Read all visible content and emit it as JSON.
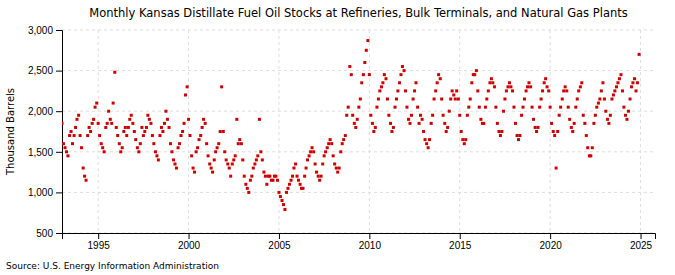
{
  "chart_data": {
    "type": "scatter",
    "title": "Monthly Kansas Distillate Fuel Oil Stocks at Refineries, Bulk Terminals, and Natural Gas Plants",
    "ylabel": "Thousand Barrels",
    "source": "Source: U.S. Energy Information Administration",
    "color": "#cc0000",
    "marker": "square",
    "grid": true,
    "xlim": [
      1993.0,
      2025.8
    ],
    "xticks": [
      1995,
      2000,
      2005,
      2010,
      2015,
      2020,
      2025
    ],
    "ylim": [
      500,
      3000
    ],
    "yticks": [
      500,
      {
        "value": 1000,
        "label": "1,000"
      },
      {
        "value": 1500,
        "label": "1,500"
      },
      {
        "value": 2000,
        "label": "2,000"
      },
      {
        "value": 2500,
        "label": "2,500"
      },
      {
        "value": 3000,
        "label": "3,000"
      }
    ],
    "x": [
      1993.0,
      1993.08,
      1993.17,
      1993.25,
      1993.33,
      1993.42,
      1993.5,
      1993.58,
      1993.67,
      1993.75,
      1993.83,
      1993.92,
      1994.0,
      1994.08,
      1994.17,
      1994.25,
      1994.33,
      1994.42,
      1994.5,
      1994.58,
      1994.67,
      1994.75,
      1994.83,
      1994.92,
      1995.0,
      1995.08,
      1995.17,
      1995.25,
      1995.33,
      1995.42,
      1995.5,
      1995.58,
      1995.67,
      1995.75,
      1995.83,
      1995.92,
      1996.0,
      1996.08,
      1996.17,
      1996.25,
      1996.33,
      1996.42,
      1996.5,
      1996.58,
      1996.67,
      1996.75,
      1996.83,
      1996.92,
      1997.0,
      1997.08,
      1997.17,
      1997.25,
      1997.33,
      1997.42,
      1997.5,
      1997.58,
      1997.67,
      1997.75,
      1997.83,
      1997.92,
      1998.0,
      1998.08,
      1998.17,
      1998.25,
      1998.33,
      1998.42,
      1998.5,
      1998.58,
      1998.67,
      1998.75,
      1998.83,
      1998.92,
      1999.0,
      1999.08,
      1999.17,
      1999.25,
      1999.33,
      1999.42,
      1999.5,
      1999.58,
      1999.67,
      1999.75,
      1999.83,
      1999.92,
      2000.0,
      2000.08,
      2000.17,
      2000.25,
      2000.33,
      2000.42,
      2000.5,
      2000.58,
      2000.67,
      2000.75,
      2000.83,
      2000.92,
      2001.0,
      2001.08,
      2001.17,
      2001.25,
      2001.33,
      2001.42,
      2001.5,
      2001.58,
      2001.67,
      2001.75,
      2001.83,
      2001.92,
      2002.0,
      2002.08,
      2002.17,
      2002.25,
      2002.33,
      2002.42,
      2002.5,
      2002.58,
      2002.67,
      2002.75,
      2002.83,
      2002.92,
      2003.0,
      2003.08,
      2003.17,
      2003.25,
      2003.33,
      2003.42,
      2003.5,
      2003.58,
      2003.67,
      2003.75,
      2003.83,
      2003.92,
      2004.0,
      2004.08,
      2004.17,
      2004.25,
      2004.33,
      2004.42,
      2004.5,
      2004.58,
      2004.67,
      2004.75,
      2004.83,
      2004.92,
      2005.0,
      2005.08,
      2005.17,
      2005.25,
      2005.33,
      2005.42,
      2005.5,
      2005.58,
      2005.67,
      2005.75,
      2005.83,
      2005.92,
      2006.0,
      2006.08,
      2006.17,
      2006.25,
      2006.33,
      2006.42,
      2006.5,
      2006.58,
      2006.67,
      2006.75,
      2006.83,
      2006.92,
      2007.0,
      2007.08,
      2007.17,
      2007.25,
      2007.33,
      2007.42,
      2007.5,
      2007.58,
      2007.67,
      2007.75,
      2007.83,
      2007.92,
      2008.0,
      2008.08,
      2008.17,
      2008.25,
      2008.33,
      2008.42,
      2008.5,
      2008.58,
      2008.67,
      2008.75,
      2008.83,
      2008.92,
      2009.0,
      2009.08,
      2009.17,
      2009.25,
      2009.33,
      2009.42,
      2009.5,
      2009.58,
      2009.67,
      2009.75,
      2009.83,
      2009.92,
      2010.0,
      2010.08,
      2010.17,
      2010.25,
      2010.33,
      2010.42,
      2010.5,
      2010.58,
      2010.67,
      2010.75,
      2010.83,
      2010.92,
      2011.0,
      2011.08,
      2011.17,
      2011.25,
      2011.33,
      2011.42,
      2011.5,
      2011.58,
      2011.67,
      2011.75,
      2011.83,
      2011.92,
      2012.0,
      2012.08,
      2012.17,
      2012.25,
      2012.33,
      2012.42,
      2012.5,
      2012.58,
      2012.67,
      2012.75,
      2012.83,
      2012.92,
      2013.0,
      2013.08,
      2013.17,
      2013.25,
      2013.33,
      2013.42,
      2013.5,
      2013.58,
      2013.67,
      2013.75,
      2013.83,
      2013.92,
      2014.0,
      2014.08,
      2014.17,
      2014.25,
      2014.33,
      2014.42,
      2014.5,
      2014.58,
      2014.67,
      2014.75,
      2014.83,
      2014.92,
      2015.0,
      2015.08,
      2015.17,
      2015.25,
      2015.33,
      2015.42,
      2015.5,
      2015.58,
      2015.67,
      2015.75,
      2015.83,
      2015.92,
      2016.0,
      2016.08,
      2016.17,
      2016.25,
      2016.33,
      2016.42,
      2016.5,
      2016.58,
      2016.67,
      2016.75,
      2016.83,
      2016.92,
      2017.0,
      2017.08,
      2017.17,
      2017.25,
      2017.33,
      2017.42,
      2017.5,
      2017.58,
      2017.67,
      2017.75,
      2017.83,
      2017.92,
      2018.0,
      2018.08,
      2018.17,
      2018.25,
      2018.33,
      2018.42,
      2018.5,
      2018.58,
      2018.67,
      2018.75,
      2018.83,
      2018.92,
      2019.0,
      2019.08,
      2019.17,
      2019.25,
      2019.33,
      2019.42,
      2019.5,
      2019.58,
      2019.67,
      2019.75,
      2019.83,
      2019.92,
      2020.0,
      2020.08,
      2020.17,
      2020.25,
      2020.33,
      2020.42,
      2020.5,
      2020.58,
      2020.67,
      2020.75,
      2020.83,
      2020.92,
      2021.0,
      2021.08,
      2021.17,
      2021.25,
      2021.33,
      2021.42,
      2021.5,
      2021.58,
      2021.67,
      2021.75,
      2021.83,
      2021.92,
      2022.0,
      2022.08,
      2022.17,
      2022.25,
      2022.33,
      2022.42,
      2022.5,
      2022.58,
      2022.67,
      2022.75,
      2022.83,
      2022.92,
      2023.0,
      2023.08,
      2023.17,
      2023.25,
      2023.33,
      2023.42,
      2023.5,
      2023.58,
      2023.67,
      2023.75,
      2023.83,
      2023.92,
      2024.0,
      2024.08,
      2024.17,
      2024.25,
      2024.33,
      2024.42,
      2024.5,
      2024.58,
      2024.67,
      2024.75,
      2024.83,
      2024.92
    ],
    "values": [
      1850,
      1600,
      1550,
      1500,
      1450,
      1700,
      1750,
      1600,
      1700,
      1800,
      1900,
      1950,
      1700,
      1550,
      1300,
      1200,
      1150,
      1700,
      1800,
      1750,
      1850,
      1900,
      2050,
      2100,
      1850,
      1700,
      1600,
      1550,
      1500,
      1800,
      1850,
      2000,
      1900,
      1850,
      2100,
      2480,
      1800,
      1700,
      1600,
      1500,
      1550,
      1750,
      1800,
      1700,
      1800,
      1900,
      1950,
      1850,
      1750,
      1650,
      1550,
      1500,
      1600,
      1800,
      1700,
      1750,
      1800,
      1950,
      1900,
      1850,
      1700,
      1600,
      1500,
      1450,
      1400,
      1700,
      1800,
      1750,
      1850,
      2000,
      1900,
      1800,
      1600,
      1500,
      1400,
      1350,
      1300,
      1550,
      1600,
      1700,
      1750,
      1850,
      2200,
      2300,
      1900,
      1700,
      1450,
      1300,
      1250,
      1500,
      1550,
      1650,
      1700,
      1800,
      1900,
      1850,
      1600,
      1450,
      1350,
      1300,
      1250,
      1400,
      1500,
      1550,
      1600,
      1750,
      2300,
      1750,
      1500,
      1400,
      1350,
      1300,
      1200,
      1350,
      1400,
      1450,
      1900,
      1600,
      1650,
      1600,
      1400,
      1200,
      1100,
      1050,
      1000,
      1150,
      1200,
      1300,
      1350,
      1400,
      1450,
      1900,
      1500,
      1400,
      1250,
      1200,
      1100,
      1200,
      1200,
      1150,
      1150,
      1200,
      1200,
      1150,
      1000,
      950,
      900,
      850,
      790,
      1000,
      1050,
      1100,
      1150,
      1200,
      1300,
      1350,
      1200,
      1150,
      1100,
      1050,
      1050,
      1200,
      1300,
      1400,
      1450,
      1500,
      1550,
      1500,
      1350,
      1250,
      1200,
      1150,
      1200,
      1350,
      1450,
      1500,
      1550,
      1600,
      1650,
      1600,
      1450,
      1350,
      1300,
      1250,
      1300,
      1500,
      1600,
      1650,
      1700,
      1950,
      2050,
      2550,
      2450,
      1950,
      1850,
      1800,
      1900,
      2050,
      2150,
      2350,
      2450,
      2600,
      2750,
      2870,
      2450,
      1950,
      1850,
      1750,
      1800,
      2050,
      2150,
      2250,
      2300,
      2350,
      2450,
      2400,
      2150,
      1950,
      1850,
      1750,
      1800,
      2050,
      2150,
      2250,
      2350,
      2450,
      2550,
      2500,
      2250,
      2050,
      1900,
      1850,
      1950,
      2150,
      2250,
      2350,
      2050,
      1850,
      1950,
      1900,
      1750,
      1650,
      1600,
      1550,
      1650,
      1850,
      1950,
      2150,
      2250,
      2350,
      2450,
      2400,
      2150,
      1950,
      1850,
      1750,
      1800,
      2000,
      2150,
      2250,
      2200,
      2150,
      2250,
      2150,
      1950,
      1750,
      1650,
      1600,
      1650,
      1950,
      2050,
      2150,
      2350,
      2450,
      2450,
      2500,
      2250,
      2050,
      1900,
      1850,
      1850,
      2050,
      2150,
      2250,
      2350,
      2400,
      2350,
      2300,
      2050,
      1850,
      1750,
      1700,
      1750,
      2000,
      2150,
      2250,
      2300,
      2350,
      2300,
      2250,
      2050,
      1850,
      1700,
      1650,
      1700,
      1950,
      2050,
      2150,
      2250,
      2300,
      2350,
      2300,
      2050,
      1900,
      1800,
      1750,
      1800,
      2050,
      2150,
      2250,
      2350,
      2400,
      2300,
      2250,
      2050,
      1850,
      1750,
      1700,
      1300,
      1750,
      1950,
      2050,
      2150,
      2250,
      2300,
      2250,
      2050,
      1900,
      1800,
      1750,
      1850,
      2050,
      2150,
      2250,
      2300,
      2350,
      1950,
      1850,
      1700,
      1550,
      1450,
      1450,
      1550,
      1850,
      1950,
      2050,
      2100,
      2150,
      2250,
      2350,
      2150,
      2000,
      1900,
      1850,
      1950,
      2150,
      2200,
      2250,
      2300,
      2350,
      2400,
      2450,
      2250,
      2050,
      1950,
      1900,
      2000,
      2150,
      2300,
      2350,
      2400,
      2250,
      2350,
      2700
    ]
  }
}
